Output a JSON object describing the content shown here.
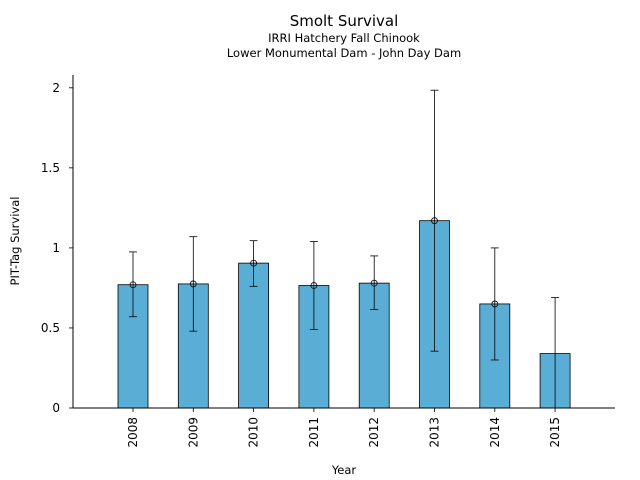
{
  "chart_data": {
    "type": "bar",
    "title": "Smolt Survival",
    "subtitle": [
      "IRRI Hatchery Fall Chinook",
      "Lower Monumental Dam - John Day Dam"
    ],
    "xlabel": "Year",
    "ylabel": "PIT-Tag Survival",
    "categories": [
      "2008",
      "2009",
      "2010",
      "2011",
      "2012",
      "2013",
      "2014",
      "2015"
    ],
    "values": [
      0.77,
      0.775,
      0.905,
      0.765,
      0.78,
      1.17,
      0.65,
      0.34
    ],
    "error_low": [
      0.57,
      0.48,
      0.76,
      0.49,
      0.615,
      0.355,
      0.3,
      null
    ],
    "error_high": [
      0.975,
      1.07,
      1.045,
      1.04,
      0.95,
      1.985,
      1.0,
      0.69
    ],
    "markers": [
      true,
      true,
      true,
      true,
      true,
      true,
      true,
      false
    ],
    "ylim": [
      0,
      2.08
    ],
    "yticks": [
      0,
      0.5,
      1,
      1.5,
      2
    ],
    "ytick_labels": [
      "0",
      "0.5",
      "1",
      "1.5",
      "2"
    ],
    "bar_color": "#5aaed6",
    "grid": false
  }
}
